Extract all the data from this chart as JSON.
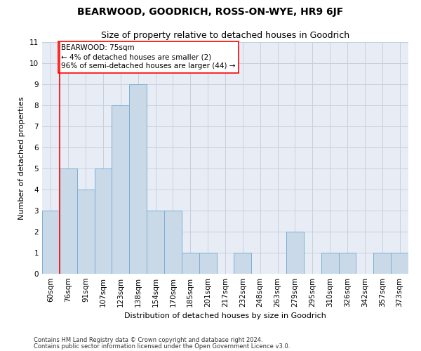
{
  "title": "BEARWOOD, GOODRICH, ROSS-ON-WYE, HR9 6JF",
  "subtitle": "Size of property relative to detached houses in Goodrich",
  "xlabel": "Distribution of detached houses by size in Goodrich",
  "ylabel": "Number of detached properties",
  "bar_labels": [
    "60sqm",
    "76sqm",
    "91sqm",
    "107sqm",
    "123sqm",
    "138sqm",
    "154sqm",
    "170sqm",
    "185sqm",
    "201sqm",
    "217sqm",
    "232sqm",
    "248sqm",
    "263sqm",
    "279sqm",
    "295sqm",
    "310sqm",
    "326sqm",
    "342sqm",
    "357sqm",
    "373sqm"
  ],
  "bar_values": [
    3,
    5,
    4,
    5,
    8,
    9,
    3,
    3,
    1,
    1,
    0,
    1,
    0,
    0,
    2,
    0,
    1,
    1,
    0,
    1,
    1
  ],
  "bar_color": "#c9d9e8",
  "bar_edgecolor": "#7bafd4",
  "ylim": [
    0,
    11
  ],
  "yticks": [
    0,
    1,
    2,
    3,
    4,
    5,
    6,
    7,
    8,
    9,
    10,
    11
  ],
  "annotation_line1": "BEARWOOD: 75sqm",
  "annotation_line2": "← 4% of detached houses are smaller (2)",
  "annotation_line3": "96% of semi-detached houses are larger (44) →",
  "footnote1": "Contains HM Land Registry data © Crown copyright and database right 2024.",
  "footnote2": "Contains public sector information licensed under the Open Government Licence v3.0.",
  "grid_color": "#c8d0e0",
  "background_color": "#e8edf5",
  "title_fontsize": 10,
  "subtitle_fontsize": 9,
  "axis_label_fontsize": 8,
  "tick_fontsize": 7.5,
  "footnote_fontsize": 6
}
